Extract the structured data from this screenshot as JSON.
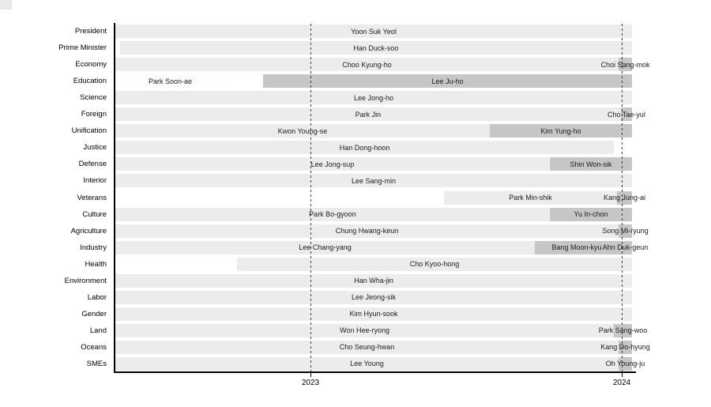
{
  "page": {
    "background": "#ffffff",
    "description_visible_text_only": true
  },
  "chart_data": {
    "type": "bar",
    "subtype": "horizontal-gantt-timeline",
    "title": "",
    "xlabel": "",
    "ylabel": "",
    "legend": "none",
    "x_axis": {
      "ticks": [
        2023,
        2024
      ],
      "tick_labels": [
        "2023",
        "2024"
      ],
      "range_years": [
        2022.373,
        2024.033
      ],
      "gridlines": "dashed-vertical-at-year-ticks"
    },
    "colors": {
      "bar_light": "#ececec",
      "bar_dark": "#c6c6c6",
      "bar_white": "#fdfdfd",
      "axis_spine": "#000000",
      "gridline": "#3d3d3d",
      "bar_label_text": "#1c1c1c",
      "row_label_text": "#000000"
    },
    "rows": [
      {
        "category": "President",
        "segments": [
          {
            "label": "Yoon Suk Yeol",
            "start": 2022.373,
            "end": 2024.033,
            "shade": "light"
          }
        ]
      },
      {
        "category": "Prime Minister",
        "segments": [
          {
            "label": "Han Duck-soo",
            "start": 2022.388,
            "end": 2024.033,
            "shade": "light"
          }
        ]
      },
      {
        "category": "Economy",
        "segments": [
          {
            "label": "Choo Kyung-ho",
            "start": 2022.373,
            "end": 2023.99,
            "shade": "light"
          },
          {
            "label": "Choi Sang-mok",
            "start": 2023.99,
            "end": 2024.033,
            "shade": "dark"
          }
        ]
      },
      {
        "category": "Education",
        "segments": [
          {
            "label": "Park Soon-ae",
            "start": 2022.373,
            "end": 2022.726,
            "shade": "white"
          },
          {
            "label": "Lee Ju-ho",
            "start": 2022.848,
            "end": 2024.033,
            "shade": "dark"
          }
        ]
      },
      {
        "category": "Science",
        "segments": [
          {
            "label": "Lee Jong-ho",
            "start": 2022.373,
            "end": 2024.033,
            "shade": "light"
          }
        ]
      },
      {
        "category": "Foreign",
        "segments": [
          {
            "label": "Park Jin",
            "start": 2022.373,
            "end": 2023.997,
            "shade": "light"
          },
          {
            "label": "Cho Tae-yul",
            "start": 2023.997,
            "end": 2024.033,
            "shade": "dark"
          }
        ]
      },
      {
        "category": "Unification",
        "segments": [
          {
            "label": "Kwon Young-se",
            "start": 2022.373,
            "end": 2023.576,
            "shade": "light"
          },
          {
            "label": "Kim Yung-ho",
            "start": 2023.576,
            "end": 2024.033,
            "shade": "dark"
          }
        ]
      },
      {
        "category": "Justice",
        "segments": [
          {
            "label": "Han Dong-hoon",
            "start": 2022.373,
            "end": 2023.975,
            "shade": "light"
          }
        ]
      },
      {
        "category": "Defense",
        "segments": [
          {
            "label": "Lee Jong-sup",
            "start": 2022.373,
            "end": 2023.769,
            "shade": "light"
          },
          {
            "label": "Shin Won-sik",
            "start": 2023.769,
            "end": 2024.033,
            "shade": "dark"
          }
        ]
      },
      {
        "category": "Interior",
        "segments": [
          {
            "label": "Lee Sang-min",
            "start": 2022.373,
            "end": 2024.033,
            "shade": "light"
          }
        ]
      },
      {
        "category": "Veterans",
        "segments": [
          {
            "label": "Park Min-shik",
            "start": 2023.429,
            "end": 2023.985,
            "shade": "light"
          },
          {
            "label": "Kang Jung-ai",
            "start": 2023.985,
            "end": 2024.033,
            "shade": "dark"
          }
        ]
      },
      {
        "category": "Culture",
        "segments": [
          {
            "label": "Park Bo-gyoon",
            "start": 2022.373,
            "end": 2023.769,
            "shade": "light"
          },
          {
            "label": "Yu In-chon",
            "start": 2023.769,
            "end": 2024.033,
            "shade": "dark"
          }
        ]
      },
      {
        "category": "Agriculture",
        "segments": [
          {
            "label": "Chung Hwang-keun",
            "start": 2022.373,
            "end": 2023.99,
            "shade": "light"
          },
          {
            "label": "Song Mi-ryung",
            "start": 2023.99,
            "end": 2024.033,
            "shade": "dark"
          }
        ]
      },
      {
        "category": "Industry",
        "segments": [
          {
            "label": "Lee Chang-yang",
            "start": 2022.373,
            "end": 2023.721,
            "shade": "light"
          },
          {
            "label": "Bang Moon-kyu",
            "start": 2023.721,
            "end": 2023.99,
            "shade": "dark"
          },
          {
            "label": "Ahn Duk-geun",
            "start": 2023.99,
            "end": 2024.033,
            "shade": "dark"
          }
        ]
      },
      {
        "category": "Health",
        "segments": [
          {
            "label": "Cho Kyoo-hong",
            "start": 2022.764,
            "end": 2024.033,
            "shade": "light"
          }
        ]
      },
      {
        "category": "Environment",
        "segments": [
          {
            "label": "Han Wha-jin",
            "start": 2022.373,
            "end": 2024.033,
            "shade": "light"
          }
        ]
      },
      {
        "category": "Labor",
        "segments": [
          {
            "label": "Lee Jeong-sik",
            "start": 2022.373,
            "end": 2024.033,
            "shade": "light"
          }
        ]
      },
      {
        "category": "Gender",
        "segments": [
          {
            "label": "Kim Hyun-sook",
            "start": 2022.373,
            "end": 2024.033,
            "shade": "light"
          }
        ]
      },
      {
        "category": "Land",
        "segments": [
          {
            "label": "Won Hee-ryong",
            "start": 2022.373,
            "end": 2023.975,
            "shade": "light"
          },
          {
            "label": "Park Sang-woo",
            "start": 2023.975,
            "end": 2024.033,
            "shade": "dark"
          }
        ]
      },
      {
        "category": "Oceans",
        "segments": [
          {
            "label": "Cho Seung-hwan",
            "start": 2022.373,
            "end": 2023.99,
            "shade": "light"
          },
          {
            "label": "Kang Do-hyung",
            "start": 2023.99,
            "end": 2024.033,
            "shade": "dark"
          }
        ]
      },
      {
        "category": "SMEs",
        "segments": [
          {
            "label": "Lee Young",
            "start": 2022.373,
            "end": 2023.99,
            "shade": "light"
          },
          {
            "label": "Oh Young-ju",
            "start": 2023.99,
            "end": 2024.033,
            "shade": "dark"
          }
        ]
      }
    ]
  }
}
